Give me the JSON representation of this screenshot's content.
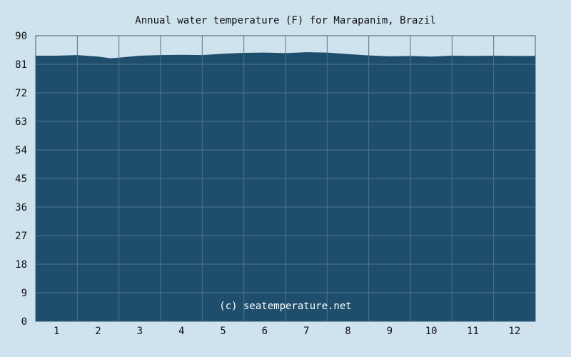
{
  "chart_data": {
    "type": "area",
    "title": "Annual water temperature (F) for Marapanim, Brazil",
    "xlabel": "",
    "ylabel": "",
    "ylim": [
      0,
      90
    ],
    "yticks": [
      0,
      9,
      18,
      27,
      36,
      45,
      54,
      63,
      72,
      81,
      90
    ],
    "months": [
      "1",
      "2",
      "3",
      "4",
      "5",
      "6",
      "7",
      "8",
      "9",
      "10",
      "11",
      "12"
    ],
    "grid": true,
    "credit": "(c) seatemperature.net",
    "series": [
      {
        "x": [
          1,
          1.5,
          2,
          2.3,
          2.5,
          3,
          3.5,
          4,
          4.5,
          5,
          5.5,
          6,
          6.5,
          7,
          7.5,
          8,
          8.5,
          9,
          9.5,
          10,
          10.5,
          11,
          11.5,
          12,
          12.5
        ],
        "values": [
          83.7,
          83.9,
          83.4,
          82.9,
          83.1,
          83.7,
          83.9,
          84.0,
          83.9,
          84.3,
          84.6,
          84.7,
          84.5,
          84.8,
          84.7,
          84.2,
          83.8,
          83.5,
          83.6,
          83.4,
          83.7,
          83.6,
          83.7,
          83.6,
          83.6
        ]
      }
    ],
    "colors": {
      "background": "#cfe3ee",
      "area": "#1e4e6b",
      "grid": "#4c7590",
      "axis": "#3a5f77"
    }
  }
}
